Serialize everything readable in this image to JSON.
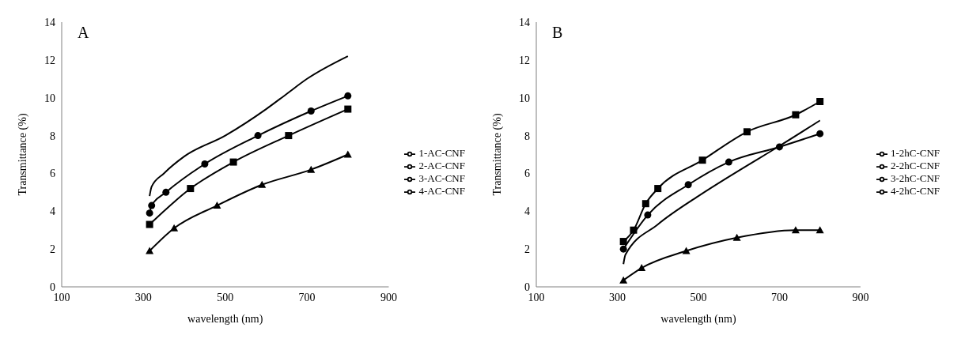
{
  "chart_data": [
    {
      "type": "line",
      "title": "A",
      "xlabel": "wavelength  (nm)",
      "ylabel": "Transmittance  (%)",
      "xlim": [
        100,
        900
      ],
      "xticks": [
        100,
        300,
        500,
        700,
        900
      ],
      "ylim": [
        0,
        14
      ],
      "yticks": [
        0,
        2,
        4,
        6,
        8,
        10,
        12,
        14
      ],
      "grid": false,
      "legend": "right",
      "line_style": "solid",
      "series": [
        {
          "name": "1-AC-CNF",
          "color": "#000000",
          "marker": "none",
          "x": [
            315,
            320,
            350,
            400,
            500,
            600,
            650,
            700,
            800
          ],
          "values": [
            4.8,
            5.3,
            6.0,
            6.9,
            8.0,
            9.4,
            10.2,
            11.0,
            12.2
          ]
        },
        {
          "name": "2-AC-CNF",
          "color": "#000000",
          "marker": "circle",
          "x": [
            315,
            320,
            355,
            450,
            580,
            710,
            800
          ],
          "values": [
            3.9,
            4.3,
            5.0,
            6.5,
            8.0,
            9.3,
            10.1
          ]
        },
        {
          "name": "3-AC-CNF",
          "color": "#000000",
          "marker": "square",
          "x": [
            315,
            415,
            520,
            655,
            800
          ],
          "values": [
            3.3,
            5.2,
            6.6,
            8.0,
            9.4
          ]
        },
        {
          "name": "4-AC-CNF",
          "color": "#000000",
          "marker": "triangle",
          "x": [
            315,
            375,
            480,
            590,
            710,
            800
          ],
          "values": [
            1.9,
            3.1,
            4.3,
            5.4,
            6.2,
            7.0
          ]
        }
      ]
    },
    {
      "type": "line",
      "title": "B",
      "xlabel": "wavelength  (nm)",
      "ylabel": "Transmittance (%)",
      "xlim": [
        100,
        900
      ],
      "xticks": [
        100,
        300,
        500,
        700,
        900
      ],
      "ylim": [
        0,
        14
      ],
      "yticks": [
        0,
        2,
        4,
        6,
        8,
        10,
        12,
        14
      ],
      "grid": false,
      "legend": "right",
      "line_style": "solid",
      "series": [
        {
          "name": "1-2hC-CNF",
          "color": "#000000",
          "marker": "none",
          "x": [
            315,
            320,
            400,
            500,
            600,
            700,
            800
          ],
          "values": [
            1.2,
            1.7,
            3.3,
            4.8,
            6.15,
            7.45,
            8.8
          ]
        },
        {
          "name": "2-2hC-CNF",
          "color": "#000000",
          "marker": "circle",
          "x": [
            315,
            375,
            475,
            575,
            700,
            800
          ],
          "values": [
            2.0,
            3.8,
            5.4,
            6.6,
            7.4,
            8.1
          ]
        },
        {
          "name": "3-2hC-CNF",
          "color": "#000000",
          "marker": "square",
          "x": [
            315,
            340,
            370,
            400,
            510,
            620,
            740,
            800
          ],
          "values": [
            2.4,
            3.0,
            4.4,
            5.2,
            6.7,
            8.2,
            9.1,
            9.8
          ]
        },
        {
          "name": "4-2hC-CNF",
          "color": "#000000",
          "marker": "triangle",
          "x": [
            315,
            360,
            470,
            595,
            740,
            800
          ],
          "values": [
            0.35,
            1.0,
            1.9,
            2.6,
            3.0,
            3.0
          ]
        }
      ]
    }
  ]
}
